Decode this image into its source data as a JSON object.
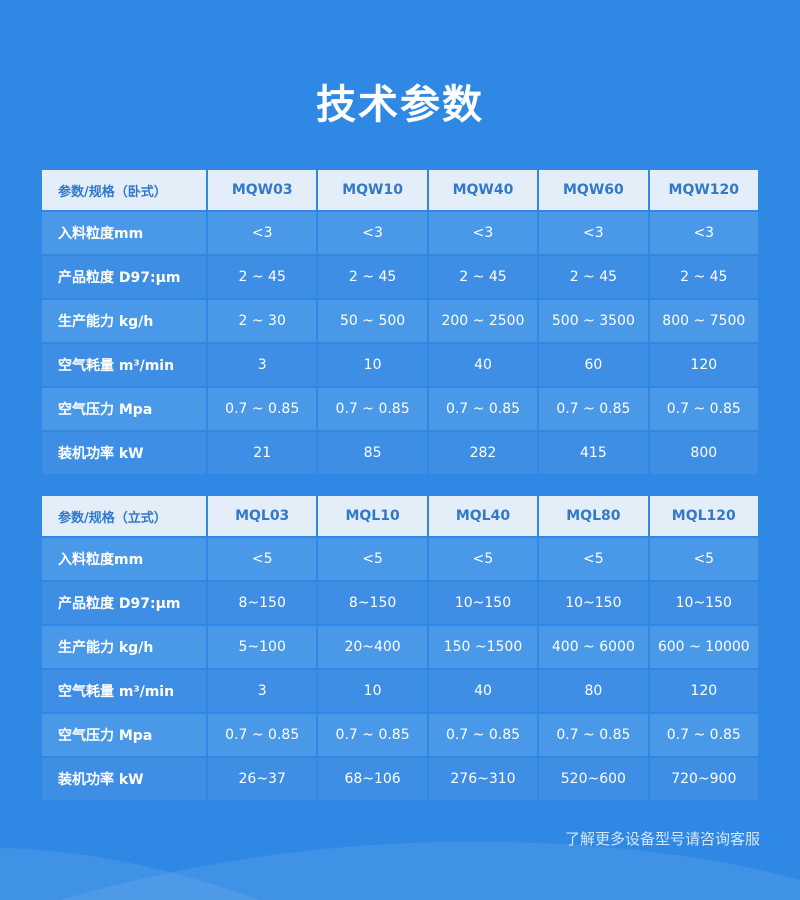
{
  "title": "技术参数",
  "tables": [
    {
      "header": [
        "参数/规格（卧式）",
        "MQW03",
        "MQW10",
        "MQW40",
        "MQW60",
        "MQW120"
      ],
      "rows": [
        [
          "入料粒度mm",
          "<3",
          "<3",
          "<3",
          "<3",
          "<3"
        ],
        [
          "产品粒度 D97:μm",
          "2 ~ 45",
          "2 ~ 45",
          "2 ~ 45",
          "2 ~ 45",
          "2 ~ 45"
        ],
        [
          "生产能力 kg/h",
          "2 ~ 30",
          "50 ~ 500",
          "200 ~ 2500",
          "500 ~ 3500",
          "800 ~ 7500"
        ],
        [
          "空气耗量 m³/min",
          "3",
          "10",
          "40",
          "60",
          "120"
        ],
        [
          "空气压力 Mpa",
          "0.7 ~ 0.85",
          "0.7 ~ 0.85",
          "0.7 ~ 0.85",
          "0.7 ~ 0.85",
          "0.7 ~ 0.85"
        ],
        [
          "装机功率 kW",
          "21",
          "85",
          "282",
          "415",
          "800"
        ]
      ]
    },
    {
      "header": [
        "参数/规格（立式）",
        "MQL03",
        "MQL10",
        "MQL40",
        "MQL80",
        "MQL120"
      ],
      "rows": [
        [
          "入料粒度mm",
          "<5",
          "<5",
          "<5",
          "<5",
          "<5"
        ],
        [
          "产品粒度 D97:μm",
          "8~150",
          "8~150",
          "10~150",
          "10~150",
          "10~150"
        ],
        [
          "生产能力 kg/h",
          "5~100",
          "20~400",
          "150 ~1500",
          "400 ~ 6000",
          "600 ~ 10000"
        ],
        [
          "空气耗量 m³/min",
          "3",
          "10",
          "40",
          "80",
          "120"
        ],
        [
          "空气压力 Mpa",
          "0.7 ~ 0.85",
          "0.7 ~ 0.85",
          "0.7 ~ 0.85",
          "0.7 ~ 0.85",
          "0.7 ~ 0.85"
        ],
        [
          "装机功率 kW",
          "26~37",
          "68~106",
          "276~310",
          "520~600",
          "720~900"
        ]
      ]
    }
  ],
  "footer": "了解更多设备型号请咨询客服"
}
